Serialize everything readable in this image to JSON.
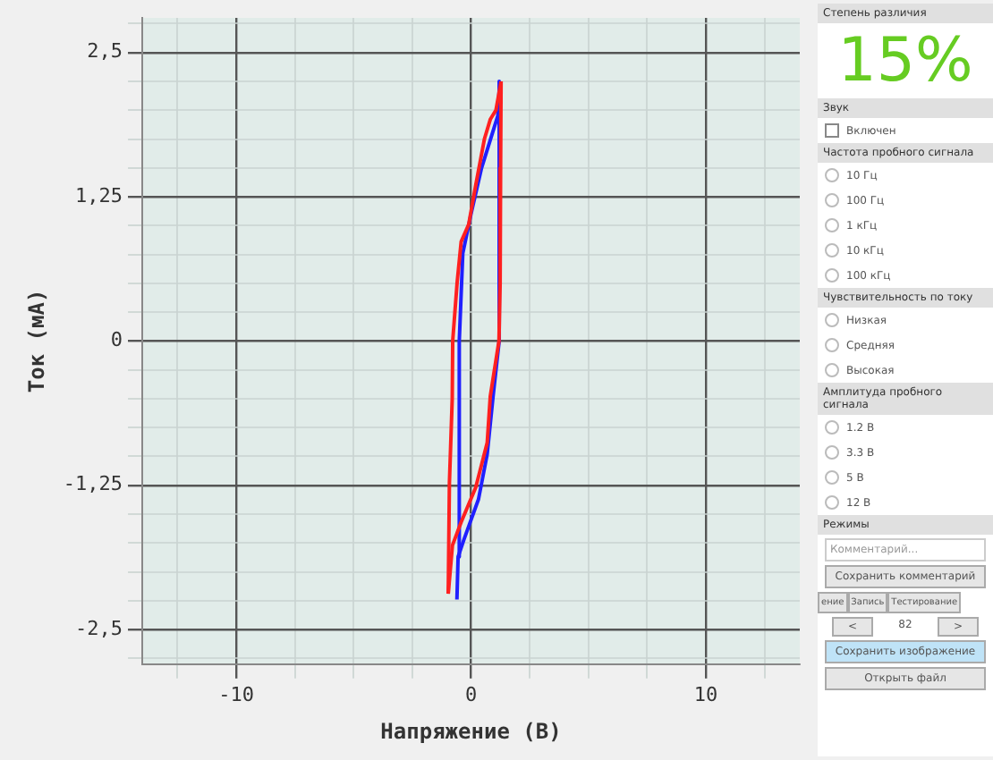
{
  "chart_data": [
    {
      "type": "line",
      "xlabel": "Напряжение (В)",
      "ylabel": "Ток (мА)",
      "xlim": [
        -14,
        14
      ],
      "ylim": [
        -2.8,
        2.8
      ],
      "xticks": [
        {
          "value": -12.5,
          "label": null
        },
        -10,
        {
          "value": -7.5,
          "label": null
        },
        {
          "value": -5,
          "label": null
        },
        {
          "value": -2.5,
          "label": null
        },
        0,
        {
          "value": 2.5,
          "label": null
        },
        {
          "value": 5,
          "label": null
        },
        {
          "value": 7.5,
          "label": null
        },
        10,
        {
          "value": 12.5,
          "label": null
        }
      ],
      "yticks": [
        {
          "value": -2.75,
          "label": null
        },
        {
          "value": -2.5,
          "label": "-2,5"
        },
        {
          "value": -2.25,
          "label": null
        },
        {
          "value": -2,
          "label": null
        },
        {
          "value": -1.75,
          "label": null
        },
        {
          "value": -1.5,
          "label": null
        },
        {
          "value": -1.25,
          "label": "-1,25"
        },
        {
          "value": -1,
          "label": null
        },
        {
          "value": -0.75,
          "label": null
        },
        {
          "value": -0.5,
          "label": null
        },
        {
          "value": -0.25,
          "label": null
        },
        0,
        {
          "value": 0.25,
          "label": null
        },
        {
          "value": 0.5,
          "label": null
        },
        {
          "value": 0.75,
          "label": null
        },
        {
          "value": 1,
          "label": null
        },
        {
          "value": 1.25,
          "label": "1,25"
        },
        {
          "value": 1.5,
          "label": null
        },
        {
          "value": 1.75,
          "label": null
        },
        {
          "value": 2,
          "label": null
        },
        {
          "value": 2.25,
          "label": null
        },
        {
          "value": 2.5,
          "label": "2,5"
        },
        {
          "value": 2.75,
          "label": null
        }
      ],
      "grid": true,
      "marker": "none",
      "line_style": "solid",
      "series": [
        {
          "color": "#ff2020",
          "x": [
            1.28,
            1.26,
            1.24,
            1.19,
            0.82,
            0.69,
            0.2,
            -0.42,
            -0.79,
            -0.97
          ],
          "values": [
            2.25,
            1.5,
            0.5,
            0,
            -0.48,
            -0.88,
            -1.27,
            -1.57,
            -1.77,
            -2.19
          ]
        },
        {
          "color": "#ff2020",
          "x": [
            -0.97,
            -0.92,
            -0.8,
            -0.78,
            -0.59,
            -0.42,
            -0.1,
            0.2,
            0.57,
            0.82,
            1.06,
            1.28
          ],
          "values": [
            -2.19,
            -1.23,
            -0.5,
            0,
            0.51,
            0.86,
            1.01,
            1.35,
            1.75,
            1.92,
            2.0,
            2.25
          ]
        },
        {
          "color": "#2020ff",
          "x": [
            1.22,
            1.2,
            0.94,
            0.69,
            0.32,
            -0.3,
            -0.55,
            -0.6
          ],
          "values": [
            2.25,
            0,
            -0.48,
            -0.98,
            -1.37,
            -1.72,
            -1.87,
            -2.24
          ]
        },
        {
          "color": "#2020ff",
          "x": [
            -0.55,
            -0.5,
            -0.35,
            0,
            0.45,
            1.14,
            1.22
          ],
          "values": [
            -1.87,
            0,
            0.76,
            1.1,
            1.5,
            1.95,
            2.25
          ]
        }
      ]
    },
    {
      "type": "other",
      "title": "Степень различия",
      "annotations": [
        "15%"
      ]
    },
    {
      "type": "other",
      "title": "Звук",
      "annotations": [
        "Включен"
      ]
    },
    {
      "type": "other",
      "title": "Частота пробного сигнала",
      "annotations": [
        "10 Гц",
        "100 Гц",
        "1 кГц",
        "10 кГц",
        "100 кГц"
      ]
    },
    {
      "type": "other",
      "title": "Чувствительность по току",
      "annotations": [
        "Низкая",
        "Средняя",
        "Высокая"
      ]
    },
    {
      "type": "other",
      "title": "Амплитуда пробного сигнала",
      "annotations": [
        "1.2 В",
        "3.3 В",
        "5 В",
        "12 В"
      ]
    },
    {
      "type": "other",
      "title": "Режимы",
      "annotations": [
        "Комментарий...",
        "Сохранить комментарий",
        "ение",
        "Запись",
        "Тестирование",
        "<",
        "82",
        ">",
        "Сохранить изображение",
        "Открыть файл"
      ]
    }
  ]
}
